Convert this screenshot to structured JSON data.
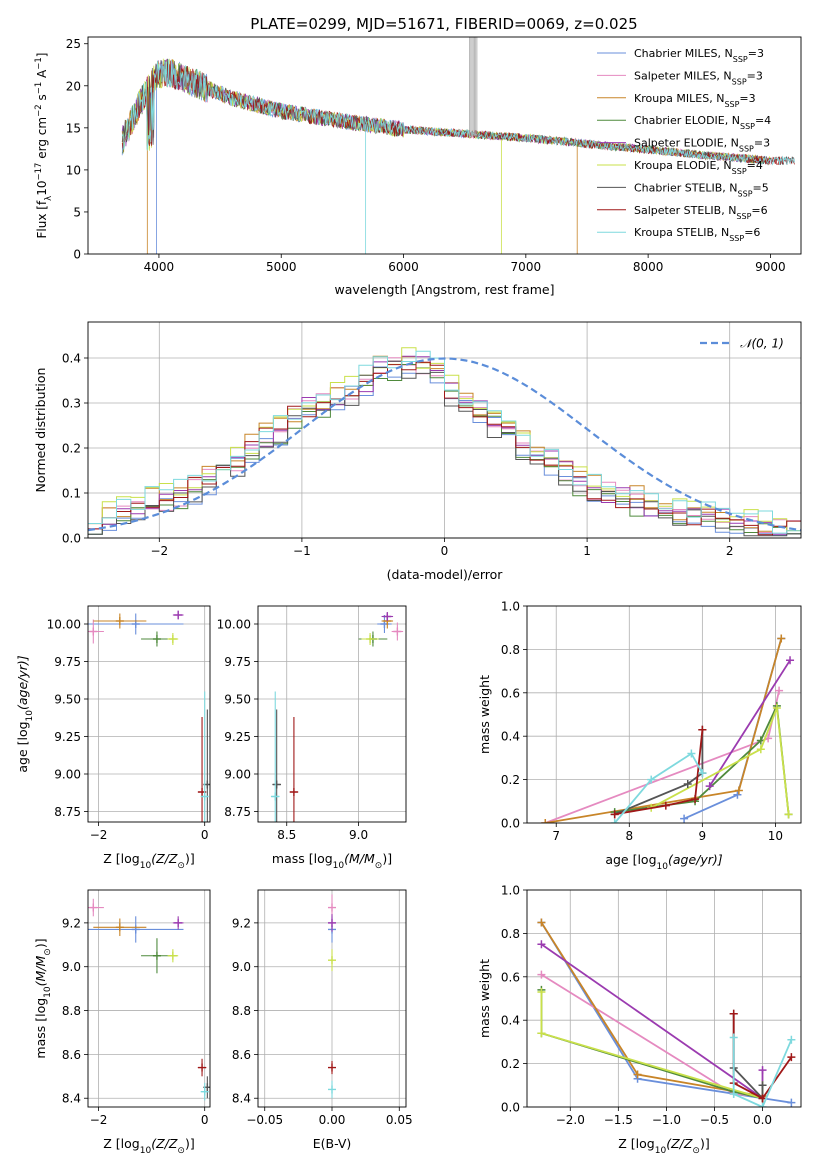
{
  "figure": {
    "title": "PLATE=0299, MJD=51671, FIBERID=0069, z=0.025"
  },
  "colors": {
    "Chabrier MILES": "#6a8fdb",
    "Salpeter MILES": "#e58ac0",
    "Kroupa MILES": "#c88528",
    "Chabrier ELODIE": "#4f8a3c",
    "Salpeter ELODIE": "#9b3bb0",
    "Kroupa ELODIE": "#c9e04a",
    "Chabrier STELIB": "#555555",
    "Salpeter STELIB": "#a01818",
    "Kroupa STELIB": "#7ed9de",
    "gauss": "#5b8dd9",
    "grid": "#b0b0b0"
  },
  "chart_data": [
    {
      "id": "spectrum",
      "type": "line",
      "xlabel": "wavelength [Angstrom, rest frame]",
      "ylabel_main": "Flux [f",
      "ylabel_sub": "λ",
      "ylabel_rest": "10",
      "ylabel_exp": "−17",
      "ylabel_tail": " erg cm",
      "ylabel_exp2": "−2",
      "ylabel_tail2": " s",
      "ylabel_exp3": "−1",
      "ylabel_tail3": " A",
      "ylabel_exp4": "−1",
      "ylabel_end": "]",
      "xlim": [
        3420,
        9250
      ],
      "ylim": [
        0,
        25.8
      ],
      "xticks": [
        4000,
        5000,
        6000,
        7000,
        8000,
        9000
      ],
      "yticks": [
        0,
        5,
        10,
        15,
        20,
        25
      ],
      "legend_position": "top-right",
      "continuum_x": [
        3700,
        3800,
        3900,
        4000,
        4100,
        4300,
        4600,
        5000,
        5500,
        6000,
        6500,
        7000,
        7500,
        8000,
        8500,
        9000
      ],
      "continuum_y": [
        13.5,
        16.5,
        19.5,
        21.5,
        21.5,
        20.3,
        18.5,
        17.0,
        15.8,
        14.8,
        14.3,
        13.8,
        13.1,
        12.4,
        11.7,
        11.1
      ],
      "series": [
        {
          "name": "Chabrier MILES",
          "label": "Chabrier MILES, N",
          "sub": "SSP",
          "tail": "=3"
        },
        {
          "name": "Salpeter MILES",
          "label": "Salpeter MILES, N",
          "sub": "SSP",
          "tail": "=3"
        },
        {
          "name": "Kroupa MILES",
          "label": "Kroupa MILES, N",
          "sub": "SSP",
          "tail": "=3"
        },
        {
          "name": "Chabrier ELODIE",
          "label": "Chabrier ELODIE, N",
          "sub": "SSP",
          "tail": "=4"
        },
        {
          "name": "Salpeter ELODIE",
          "label": "Salpeter ELODIE, N",
          "sub": "SSP",
          "tail": "=3"
        },
        {
          "name": "Kroupa ELODIE",
          "label": "Kroupa ELODIE, N",
          "sub": "SSP",
          "tail": "=4"
        },
        {
          "name": "Chabrier STELIB",
          "label": "Chabrier STELIB, N",
          "sub": "SSP",
          "tail": "=5"
        },
        {
          "name": "Salpeter STELIB",
          "label": "Salpeter STELIB, N",
          "sub": "SSP",
          "tail": "=6"
        },
        {
          "name": "Kroupa STELIB",
          "label": "Kroupa STELIB, N",
          "sub": "SSP",
          "tail": "=6"
        }
      ]
    },
    {
      "id": "residuals",
      "type": "histogram",
      "xlabel": "(data-model)/error",
      "ylabel": "Normed distribution",
      "xlim": [
        -2.5,
        2.5
      ],
      "ylim": [
        0,
        0.48
      ],
      "xticks": [
        -2,
        -1,
        0,
        1,
        2
      ],
      "yticks": [
        0.0,
        0.1,
        0.2,
        0.3,
        0.4
      ],
      "bin_edges_start": -2.5,
      "bin_width": 0.1,
      "gauss_label": "𝒩(0, 1)",
      "legend_position": "top-right",
      "base_distribution": [
        0.045,
        0.05,
        0.06,
        0.07,
        0.08,
        0.085,
        0.095,
        0.11,
        0.13,
        0.15,
        0.17,
        0.2,
        0.22,
        0.24,
        0.27,
        0.29,
        0.3,
        0.31,
        0.33,
        0.35,
        0.37,
        0.38,
        0.39,
        0.385,
        0.37,
        0.33,
        0.3,
        0.28,
        0.26,
        0.23,
        0.21,
        0.19,
        0.17,
        0.15,
        0.13,
        0.11,
        0.1,
        0.09,
        0.08,
        0.07,
        0.06,
        0.05,
        0.05,
        0.045,
        0.04,
        0.035,
        0.03,
        0.025,
        0.02,
        0.02
      ]
    },
    {
      "id": "age_vs_Z",
      "type": "errorbar",
      "xlabel": "Z [log",
      "xlabel_sub": "10",
      "xlabel_tail": "(Z/Z",
      "xlabel_sub2": "⊙",
      "xlabel_end": ")]",
      "ylabel": "age  [log",
      "ylabel_sub": "10",
      "ylabel_tail": "(age/yr)]",
      "xlim": [
        -2.2,
        0.1
      ],
      "ylim": [
        8.68,
        10.12
      ],
      "xticks": [
        -2,
        0
      ],
      "yticks": [
        8.75,
        9.0,
        9.25,
        9.5,
        9.75,
        10.0
      ],
      "points": [
        {
          "s": "Chabrier MILES",
          "x": -1.3,
          "y": 10.0,
          "xerr": 0.9,
          "yerr": 0.07
        },
        {
          "s": "Salpeter MILES",
          "x": -2.1,
          "y": 9.95,
          "xerr": 0.2,
          "yerr": 0.08
        },
        {
          "s": "Kroupa MILES",
          "x": -1.6,
          "y": 10.02,
          "xerr": 0.5,
          "yerr": 0.05
        },
        {
          "s": "Chabrier ELODIE",
          "x": -0.9,
          "y": 9.9,
          "xerr": 0.3,
          "yerr": 0.05
        },
        {
          "s": "Salpeter ELODIE",
          "x": -0.5,
          "y": 10.06,
          "xerr": 0.1,
          "yerr": 0.03
        },
        {
          "s": "Kroupa ELODIE",
          "x": -0.6,
          "y": 9.9,
          "xerr": 0.1,
          "yerr": 0.04
        },
        {
          "s": "Chabrier STELIB",
          "x": 0.05,
          "y": 8.93,
          "xerr": 0.05,
          "yerr": 0.5
        },
        {
          "s": "Salpeter STELIB",
          "x": -0.05,
          "y": 8.88,
          "xerr": 0.08,
          "yerr": 0.5
        },
        {
          "s": "Kroupa STELIB",
          "x": 0.0,
          "y": 8.85,
          "xerr": 0.04,
          "yerr": 0.7
        }
      ]
    },
    {
      "id": "age_vs_mass",
      "type": "errorbar",
      "xlabel": "mass [log",
      "xlabel_sub": "10",
      "xlabel_tail": "(M/M",
      "xlabel_sub2": "⊙",
      "xlabel_end": ")]",
      "ylabel": "",
      "xlim": [
        8.3,
        9.33
      ],
      "ylim": [
        8.68,
        10.12
      ],
      "xticks": [
        8.5,
        9.0
      ],
      "yticks": [
        8.75,
        9.0,
        9.25,
        9.5,
        9.75,
        10.0
      ],
      "points": [
        {
          "s": "Chabrier MILES",
          "x": 9.18,
          "y": 10.0,
          "xerr": 0.05,
          "yerr": 0.06
        },
        {
          "s": "Salpeter MILES",
          "x": 9.27,
          "y": 9.95,
          "xerr": 0.04,
          "yerr": 0.06
        },
        {
          "s": "Kroupa MILES",
          "x": 9.2,
          "y": 10.02,
          "xerr": 0.04,
          "yerr": 0.05
        },
        {
          "s": "Chabrier ELODIE",
          "x": 9.1,
          "y": 9.9,
          "xerr": 0.1,
          "yerr": 0.05
        },
        {
          "s": "Salpeter ELODIE",
          "x": 9.2,
          "y": 10.05,
          "xerr": 0.04,
          "yerr": 0.03
        },
        {
          "s": "Kroupa ELODIE",
          "x": 9.08,
          "y": 9.9,
          "xerr": 0.06,
          "yerr": 0.04
        },
        {
          "s": "Chabrier STELIB",
          "x": 8.43,
          "y": 8.93,
          "xerr": 0.03,
          "yerr": 0.5
        },
        {
          "s": "Salpeter STELIB",
          "x": 8.55,
          "y": 8.88,
          "xerr": 0.03,
          "yerr": 0.5
        },
        {
          "s": "Kroupa STELIB",
          "x": 8.42,
          "y": 8.85,
          "xerr": 0.03,
          "yerr": 0.7
        }
      ]
    },
    {
      "id": "weight_vs_age",
      "type": "line",
      "xlabel": "age  [log",
      "xlabel_sub": "10",
      "xlabel_tail": "(age/yr)]",
      "ylabel": "mass weight",
      "xlim": [
        6.6,
        10.35
      ],
      "ylim": [
        0,
        1.0
      ],
      "xticks": [
        7,
        8,
        9,
        10
      ],
      "yticks": [
        0.0,
        0.2,
        0.4,
        0.6,
        0.8,
        1.0
      ],
      "series": [
        {
          "name": "Chabrier MILES",
          "x": [
            8.75,
            9.48,
            10.08
          ],
          "y": [
            0.02,
            0.13,
            0.85
          ]
        },
        {
          "name": "Salpeter MILES",
          "x": [
            6.85,
            9.9,
            10.05
          ],
          "y": [
            0.0,
            0.39,
            0.61
          ]
        },
        {
          "name": "Kroupa MILES",
          "x": [
            6.85,
            9.5,
            10.08
          ],
          "y": [
            0.0,
            0.15,
            0.85
          ]
        },
        {
          "name": "Chabrier ELODIE",
          "x": [
            7.8,
            8.9,
            9.8,
            10.02,
            10.18
          ],
          "y": [
            0.05,
            0.1,
            0.38,
            0.54,
            0.04
          ]
        },
        {
          "name": "Salpeter ELODIE",
          "x": [
            9.1,
            10.2
          ],
          "y": [
            0.17,
            0.75
          ]
        },
        {
          "name": "Kroupa ELODIE",
          "x": [
            8.3,
            9.8,
            10.02,
            10.18
          ],
          "y": [
            0.07,
            0.34,
            0.53,
            0.04
          ]
        },
        {
          "name": "Chabrier STELIB",
          "x": [
            7.8,
            8.8,
            9.0,
            9.0
          ],
          "y": [
            0.04,
            0.18,
            0.23,
            0.43
          ]
        },
        {
          "name": "Salpeter STELIB",
          "x": [
            7.8,
            8.5,
            8.9,
            9.0
          ],
          "y": [
            0.04,
            0.08,
            0.11,
            0.43
          ]
        },
        {
          "name": "Kroupa STELIB",
          "x": [
            7.8,
            8.3,
            8.85,
            9.0
          ],
          "y": [
            0.0,
            0.2,
            0.32,
            0.23
          ]
        }
      ]
    },
    {
      "id": "mass_vs_Z",
      "type": "errorbar",
      "xlabel": "Z [log",
      "xlabel_sub": "10",
      "xlabel_tail": "(Z/Z",
      "xlabel_sub2": "⊙",
      "xlabel_end": ")]",
      "ylabel": "mass [log",
      "ylabel_sub": "10",
      "ylabel_tail": "(M/M",
      "ylabel_sub2": "⊙",
      "ylabel_end": ")]",
      "xlim": [
        -2.2,
        0.1
      ],
      "ylim": [
        8.36,
        9.35
      ],
      "xticks": [
        -2,
        0
      ],
      "yticks": [
        8.4,
        8.6,
        8.8,
        9.0,
        9.2
      ],
      "points": [
        {
          "s": "Chabrier MILES",
          "x": -1.3,
          "y": 9.17,
          "xerr": 0.9,
          "yerr": 0.06
        },
        {
          "s": "Salpeter MILES",
          "x": -2.1,
          "y": 9.27,
          "xerr": 0.2,
          "yerr": 0.04
        },
        {
          "s": "Kroupa MILES",
          "x": -1.6,
          "y": 9.18,
          "xerr": 0.5,
          "yerr": 0.04
        },
        {
          "s": "Chabrier ELODIE",
          "x": -0.9,
          "y": 9.05,
          "xerr": 0.3,
          "yerr": 0.08
        },
        {
          "s": "Salpeter ELODIE",
          "x": -0.5,
          "y": 9.2,
          "xerr": 0.1,
          "yerr": 0.03
        },
        {
          "s": "Kroupa ELODIE",
          "x": -0.6,
          "y": 9.05,
          "xerr": 0.1,
          "yerr": 0.03
        },
        {
          "s": "Chabrier STELIB",
          "x": 0.05,
          "y": 8.45,
          "xerr": 0.05,
          "yerr": 0.05
        },
        {
          "s": "Salpeter STELIB",
          "x": -0.05,
          "y": 8.54,
          "xerr": 0.08,
          "yerr": 0.04
        },
        {
          "s": "Kroupa STELIB",
          "x": 0.0,
          "y": 8.43,
          "xerr": 0.04,
          "yerr": 0.04
        }
      ]
    },
    {
      "id": "mass_vs_EBV",
      "type": "errorbar",
      "xlabel": "E(B-V)",
      "ylabel": "",
      "xlim": [
        -0.055,
        0.055
      ],
      "ylim": [
        8.36,
        9.35
      ],
      "xticks": [
        -0.05,
        0.0,
        0.05
      ],
      "xtick_labels": [
        "−0.05",
        "0.00",
        "0.05"
      ],
      "yticks": [
        8.4,
        8.6,
        8.8,
        9.0,
        9.2
      ],
      "points": [
        {
          "s": "Salpeter MILES",
          "x": 0.0,
          "y": 9.27,
          "xerr": 0.0,
          "yerr": 0.06
        },
        {
          "s": "Chabrier MILES",
          "x": 0.0,
          "y": 9.17,
          "xerr": 0.0,
          "yerr": 0.06
        },
        {
          "s": "Salpeter ELODIE",
          "x": 0.0,
          "y": 9.2,
          "xerr": 0.0,
          "yerr": 0.04
        },
        {
          "s": "Kroupa ELODIE",
          "x": 0.0,
          "y": 9.03,
          "xerr": 0.0,
          "yerr": 0.05
        },
        {
          "s": "Salpeter STELIB",
          "x": 0.0,
          "y": 8.54,
          "xerr": 0.0,
          "yerr": 0.03
        },
        {
          "s": "Kroupa STELIB",
          "x": 0.0,
          "y": 8.44,
          "xerr": 0.0,
          "yerr": 0.04
        }
      ]
    },
    {
      "id": "weight_vs_Z",
      "type": "line",
      "xlabel": "Z [log",
      "xlabel_sub": "10",
      "xlabel_tail": "(Z/Z",
      "xlabel_sub2": "⊙",
      "xlabel_end": ")]",
      "ylabel": "mass weight",
      "xlim": [
        -2.45,
        0.4
      ],
      "ylim": [
        0,
        1.0
      ],
      "xticks": [
        -2.0,
        -1.5,
        -1.0,
        -0.5,
        0.0
      ],
      "xtick_labels": [
        "−2.0",
        "−1.5",
        "−1.0",
        "−0.5",
        "0.0"
      ],
      "yticks": [
        0.0,
        0.2,
        0.4,
        0.6,
        0.8,
        1.0
      ],
      "series": [
        {
          "name": "Chabrier MILES",
          "x": [
            -2.3,
            -1.3,
            0.3
          ],
          "y": [
            0.85,
            0.13,
            0.02
          ]
        },
        {
          "name": "Salpeter MILES",
          "x": [
            -2.3,
            -0.3,
            0.0
          ],
          "y": [
            0.61,
            0.06,
            0.05
          ]
        },
        {
          "name": "Kroupa MILES",
          "x": [
            -2.3,
            -1.3,
            0.0
          ],
          "y": [
            0.85,
            0.15,
            0.05
          ]
        },
        {
          "name": "Chabrier ELODIE",
          "x": [
            -2.3,
            -2.3,
            -0.3,
            0.0
          ],
          "y": [
            0.54,
            0.34,
            0.07,
            0.04
          ]
        },
        {
          "name": "Salpeter ELODIE",
          "x": [
            -2.3,
            0.0,
            0.0
          ],
          "y": [
            0.75,
            0.04,
            0.17
          ]
        },
        {
          "name": "Kroupa ELODIE",
          "x": [
            -2.3,
            -2.3,
            0.0,
            0.0
          ],
          "y": [
            0.53,
            0.34,
            0.04,
            0.1
          ]
        },
        {
          "name": "Chabrier STELIB",
          "x": [
            -0.3,
            -0.3,
            0.0,
            0.0
          ],
          "y": [
            0.43,
            0.18,
            0.04,
            0.1
          ]
        },
        {
          "name": "Salpeter STELIB",
          "x": [
            -0.3,
            -0.3,
            0.0,
            0.3
          ],
          "y": [
            0.43,
            0.11,
            0.04,
            0.23
          ]
        },
        {
          "name": "Kroupa STELIB",
          "x": [
            -0.3,
            -0.3,
            0.0,
            0.3
          ],
          "y": [
            0.32,
            0.06,
            0.0,
            0.31
          ]
        }
      ]
    }
  ]
}
